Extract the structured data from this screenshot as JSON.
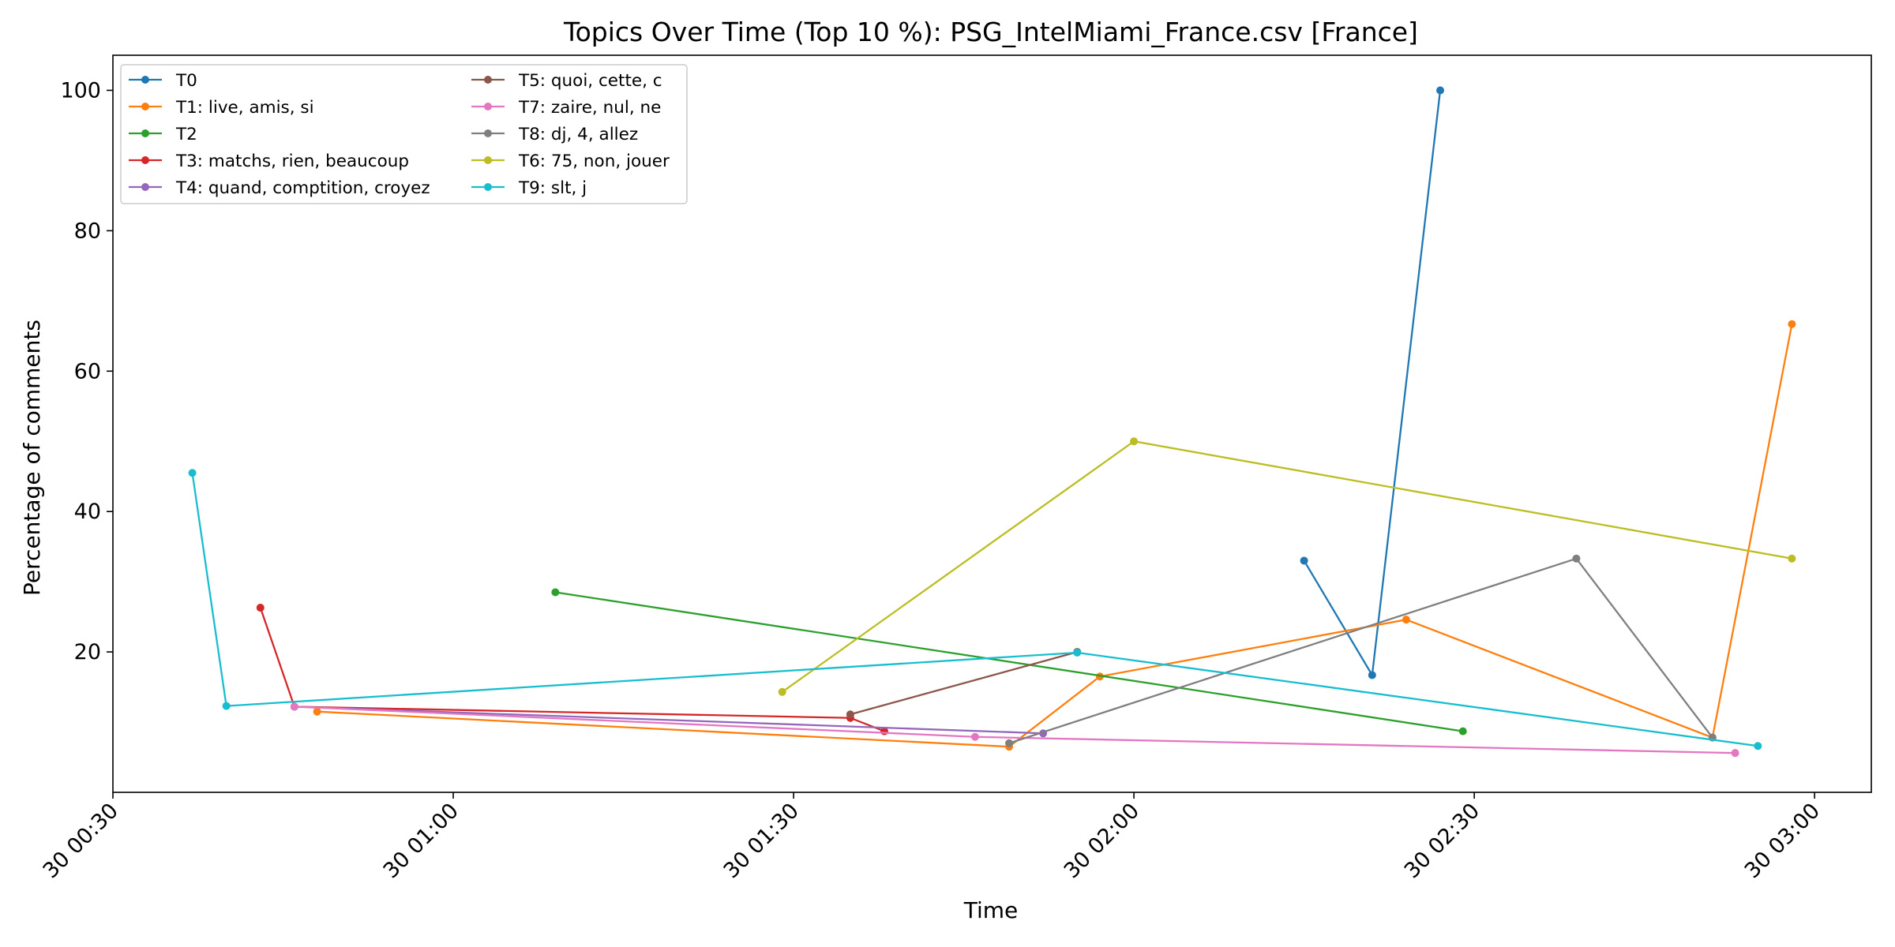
{
  "chart_data": {
    "type": "line",
    "title": "Topics Over Time (Top 10 %): PSG_IntelMiami_France.csv [France]",
    "xlabel": "Time",
    "ylabel": "Percentage of comments",
    "x_type": "time",
    "xlim": [
      "30 00:30",
      "30 03:05"
    ],
    "ylim": [
      0,
      105
    ],
    "x_ticks": [
      "30 00:30",
      "30 01:00",
      "30 01:30",
      "30 02:00",
      "30 02:30",
      "30 03:00"
    ],
    "y_ticks": [
      20,
      40,
      60,
      80,
      100
    ],
    "grid": false,
    "legend": {
      "placement": "top-left",
      "columns": 2
    },
    "series": [
      {
        "name": "T0",
        "color": "#1f77b4",
        "x": [
          "30 02:15",
          "30 02:21",
          "30 02:27"
        ],
        "y": [
          33.0,
          16.7,
          100.0
        ]
      },
      {
        "name": "T1: live, amis, si",
        "color": "#ff7f0e",
        "x": [
          "30 00:48",
          "30 01:49",
          "30 01:57",
          "30 02:24",
          "30 02:51",
          "30 02:58"
        ],
        "y": [
          11.5,
          6.5,
          16.5,
          24.6,
          7.8,
          66.7
        ]
      },
      {
        "name": "T2",
        "color": "#2ca02c",
        "x": [
          "30 01:09",
          "30 02:29"
        ],
        "y": [
          28.5,
          8.7
        ]
      },
      {
        "name": "T3: matchs, rien, beaucoup",
        "color": "#d62728",
        "x": [
          "30 00:43",
          "30 00:46",
          "30 01:35",
          "30 01:38"
        ],
        "y": [
          26.3,
          12.2,
          10.6,
          8.7
        ]
      },
      {
        "name": "T4: quand, comptition, croyez",
        "color": "#9467bd",
        "x": [
          "30 00:46",
          "30 01:52"
        ],
        "y": [
          12.2,
          8.4
        ]
      },
      {
        "name": "T5: quoi, cette, c",
        "color": "#8c564b",
        "x": [
          "30 01:35",
          "30 01:55"
        ],
        "y": [
          11.1,
          20.0
        ]
      },
      {
        "name": "T7: zaire, nul, ne",
        "color": "#e377c2",
        "x": [
          "30 00:46",
          "30 01:46",
          "30 02:53"
        ],
        "y": [
          12.2,
          7.9,
          5.6
        ]
      },
      {
        "name": "T8: dj, 4, allez",
        "color": "#7f7f7f",
        "x": [
          "30 01:49",
          "30 02:39",
          "30 02:51"
        ],
        "y": [
          7.0,
          33.3,
          7.8
        ]
      },
      {
        "name": "T6: 75, non, jouer",
        "color": "#bcbd22",
        "x": [
          "30 01:29",
          "30 02:00",
          "30 02:58"
        ],
        "y": [
          14.3,
          50.0,
          33.3
        ]
      },
      {
        "name": "T9: slt, j",
        "color": "#17becf",
        "x": [
          "30 00:37",
          "30 00:40",
          "30 01:55",
          "30 02:55"
        ],
        "y": [
          45.5,
          12.3,
          19.9,
          6.6
        ]
      }
    ]
  }
}
